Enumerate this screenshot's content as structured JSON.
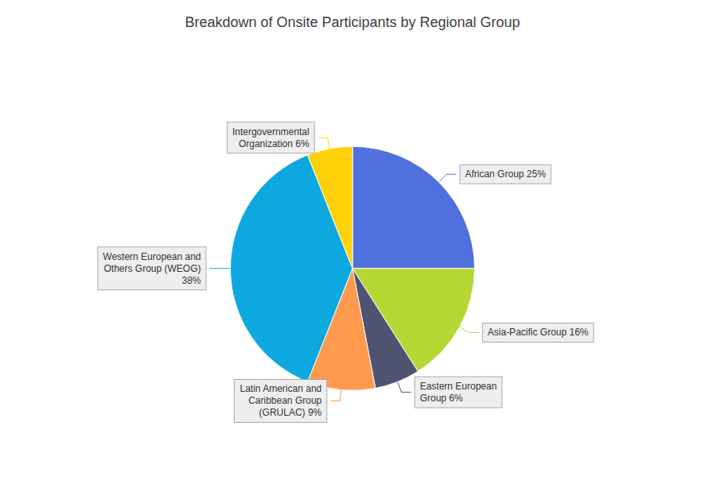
{
  "chart_data": {
    "type": "pie",
    "title": "Breakdown of Onsite Participants by Regional Group",
    "categories": [
      "African Group 25%",
      "Asia-Pacific Group 16%",
      "Eastern European\nGroup 6%",
      "Latin American and\nCaribbean Group\n(GRULAC) 9%",
      "Western European and\nOthers Group (WEOG)\n38%",
      "Intergovernmental\nOrganization 6%"
    ],
    "values": [
      25,
      16,
      6,
      9,
      38,
      6
    ],
    "legend": false
  }
}
